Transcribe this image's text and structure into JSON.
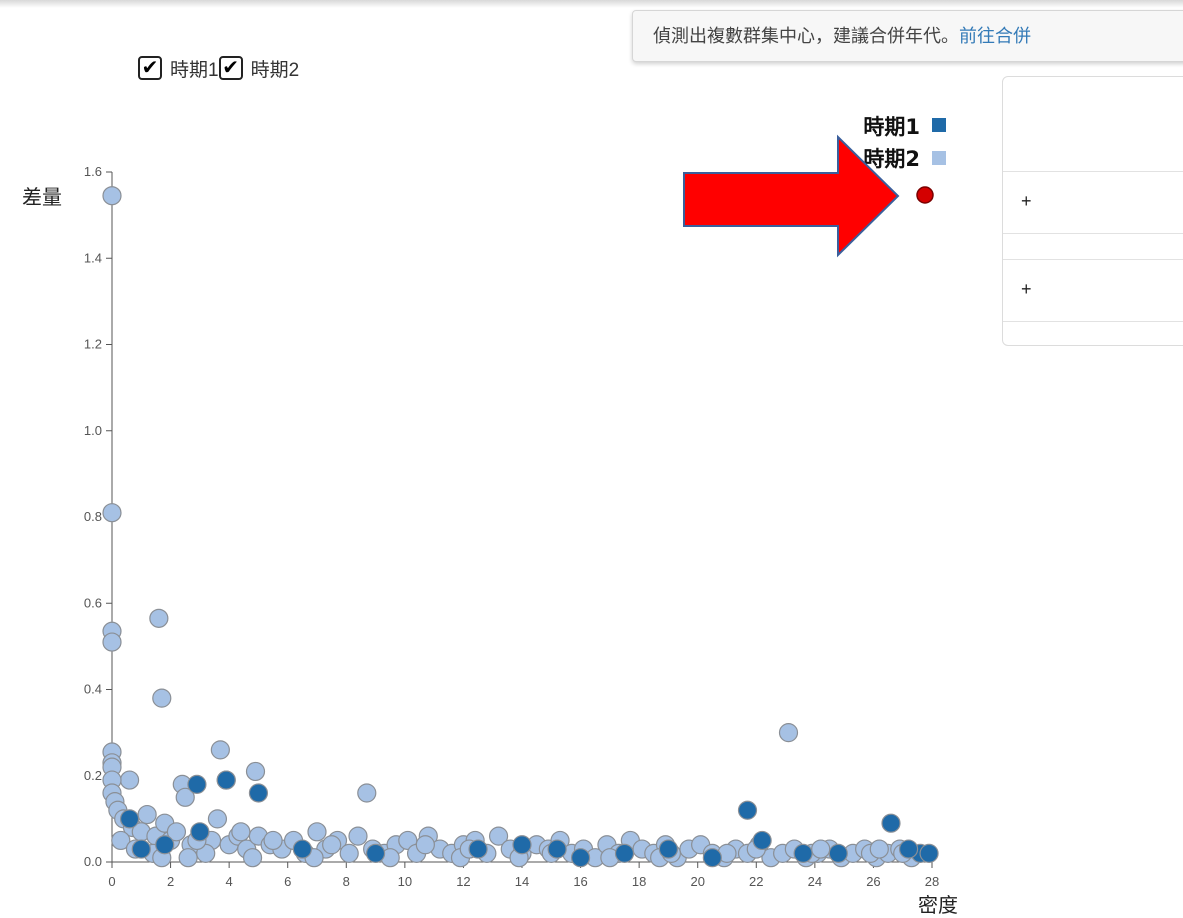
{
  "notice": {
    "text": "偵測出複數群集中心，建議合併年代。",
    "link": "前往合併"
  },
  "filters": [
    {
      "label": "時期1",
      "checked": true
    },
    {
      "label": "時期2",
      "checked": true
    }
  ],
  "side_panel": {
    "rows": [
      "+",
      "+"
    ]
  },
  "colors": {
    "period1": "#1f6aa8",
    "period2": "#a6c1e4",
    "arrow": "#ff0000",
    "marker": "#d40000"
  },
  "chart_data": {
    "type": "scatter",
    "xlabel": "密度",
    "ylabel": "差量",
    "xlim": [
      0,
      28
    ],
    "ylim": [
      0,
      1.6
    ],
    "x_ticks": [
      "0",
      "2",
      "4",
      "6",
      "8",
      "10",
      "12",
      "14",
      "16",
      "18",
      "20",
      "22",
      "24",
      "26",
      "28"
    ],
    "y_ticks": [
      "0.0",
      "0.2",
      "0.4",
      "0.6",
      "0.8",
      "1.0",
      "1.2",
      "1.4",
      "1.6"
    ],
    "legend": {
      "position": "top-right",
      "entries": [
        "時期1",
        "時期2"
      ]
    },
    "series": [
      {
        "name": "時期1",
        "points": [
          [
            2.9,
            0.18
          ],
          [
            3.9,
            0.19
          ],
          [
            5.0,
            0.16
          ],
          [
            21.7,
            0.12
          ],
          [
            22.2,
            0.05
          ],
          [
            26.6,
            0.09
          ],
          [
            1.0,
            0.03
          ],
          [
            3.0,
            0.07
          ],
          [
            14.0,
            0.04
          ],
          [
            19.0,
            0.03
          ],
          [
            27.6,
            0.02
          ],
          [
            27.9,
            0.02
          ],
          [
            12.5,
            0.03
          ],
          [
            9.0,
            0.02
          ],
          [
            17.5,
            0.02
          ],
          [
            24.8,
            0.02
          ],
          [
            6.5,
            0.03
          ],
          [
            0.6,
            0.1
          ],
          [
            1.8,
            0.04
          ],
          [
            23.6,
            0.02
          ],
          [
            16.0,
            0.01
          ],
          [
            27.2,
            0.03
          ],
          [
            20.5,
            0.01
          ],
          [
            15.2,
            0.03
          ]
        ]
      },
      {
        "name": "時期2",
        "points": [
          [
            0.0,
            1.545
          ],
          [
            0.0,
            0.81
          ],
          [
            0.0,
            0.535
          ],
          [
            0.0,
            0.51
          ],
          [
            1.6,
            0.565
          ],
          [
            1.7,
            0.38
          ],
          [
            3.7,
            0.26
          ],
          [
            3.9,
            0.19
          ],
          [
            4.9,
            0.21
          ],
          [
            8.7,
            0.16
          ],
          [
            23.1,
            0.3
          ],
          [
            0.0,
            0.255
          ],
          [
            0.0,
            0.23
          ],
          [
            0.0,
            0.22
          ],
          [
            0.6,
            0.19
          ],
          [
            2.4,
            0.18
          ],
          [
            2.5,
            0.15
          ],
          [
            0.0,
            0.19
          ],
          [
            0.0,
            0.16
          ],
          [
            0.1,
            0.14
          ],
          [
            0.2,
            0.12
          ],
          [
            0.4,
            0.1
          ],
          [
            0.7,
            0.08
          ],
          [
            1.0,
            0.07
          ],
          [
            1.2,
            0.11
          ],
          [
            1.5,
            0.06
          ],
          [
            1.8,
            0.09
          ],
          [
            2.0,
            0.05
          ],
          [
            2.2,
            0.07
          ],
          [
            2.7,
            0.04
          ],
          [
            3.0,
            0.06
          ],
          [
            3.4,
            0.05
          ],
          [
            3.6,
            0.1
          ],
          [
            4.0,
            0.04
          ],
          [
            4.3,
            0.06
          ],
          [
            4.6,
            0.03
          ],
          [
            5.0,
            0.06
          ],
          [
            5.4,
            0.04
          ],
          [
            5.8,
            0.03
          ],
          [
            6.2,
            0.05
          ],
          [
            6.6,
            0.02
          ],
          [
            7.0,
            0.07
          ],
          [
            7.3,
            0.03
          ],
          [
            7.7,
            0.05
          ],
          [
            8.1,
            0.02
          ],
          [
            8.4,
            0.06
          ],
          [
            8.9,
            0.03
          ],
          [
            9.3,
            0.02
          ],
          [
            9.7,
            0.04
          ],
          [
            10.1,
            0.05
          ],
          [
            10.4,
            0.02
          ],
          [
            10.8,
            0.06
          ],
          [
            11.2,
            0.03
          ],
          [
            11.6,
            0.02
          ],
          [
            12.0,
            0.04
          ],
          [
            12.4,
            0.05
          ],
          [
            12.8,
            0.02
          ],
          [
            13.2,
            0.06
          ],
          [
            13.6,
            0.03
          ],
          [
            14.0,
            0.02
          ],
          [
            14.5,
            0.04
          ],
          [
            14.9,
            0.03
          ],
          [
            15.3,
            0.05
          ],
          [
            15.7,
            0.02
          ],
          [
            16.1,
            0.03
          ],
          [
            16.5,
            0.01
          ],
          [
            16.9,
            0.04
          ],
          [
            17.3,
            0.02
          ],
          [
            17.7,
            0.05
          ],
          [
            18.1,
            0.03
          ],
          [
            18.5,
            0.02
          ],
          [
            18.9,
            0.04
          ],
          [
            19.3,
            0.01
          ],
          [
            19.7,
            0.03
          ],
          [
            20.1,
            0.04
          ],
          [
            20.5,
            0.02
          ],
          [
            20.9,
            0.01
          ],
          [
            21.3,
            0.03
          ],
          [
            21.7,
            0.02
          ],
          [
            22.1,
            0.04
          ],
          [
            22.5,
            0.01
          ],
          [
            22.9,
            0.02
          ],
          [
            23.3,
            0.03
          ],
          [
            23.7,
            0.01
          ],
          [
            24.1,
            0.02
          ],
          [
            24.5,
            0.03
          ],
          [
            24.9,
            0.01
          ],
          [
            25.3,
            0.02
          ],
          [
            25.7,
            0.03
          ],
          [
            26.1,
            0.01
          ],
          [
            26.5,
            0.02
          ],
          [
            26.9,
            0.03
          ],
          [
            27.3,
            0.01
          ],
          [
            0.3,
            0.05
          ],
          [
            0.8,
            0.03
          ],
          [
            1.4,
            0.02
          ],
          [
            2.6,
            0.01
          ],
          [
            3.2,
            0.02
          ],
          [
            4.8,
            0.01
          ],
          [
            6.9,
            0.01
          ],
          [
            9.5,
            0.01
          ],
          [
            11.9,
            0.01
          ],
          [
            13.9,
            0.01
          ],
          [
            17.0,
            0.01
          ],
          [
            18.7,
            0.01
          ],
          [
            21.0,
            0.02
          ],
          [
            23.9,
            0.02
          ],
          [
            25.9,
            0.02
          ],
          [
            1.7,
            0.01
          ],
          [
            2.9,
            0.05
          ],
          [
            4.4,
            0.07
          ],
          [
            5.5,
            0.05
          ],
          [
            7.5,
            0.04
          ],
          [
            10.7,
            0.04
          ],
          [
            12.2,
            0.03
          ],
          [
            15.0,
            0.02
          ],
          [
            19.1,
            0.02
          ],
          [
            22.0,
            0.03
          ],
          [
            24.2,
            0.03
          ],
          [
            26.2,
            0.03
          ],
          [
            27.0,
            0.02
          ]
        ]
      }
    ]
  }
}
